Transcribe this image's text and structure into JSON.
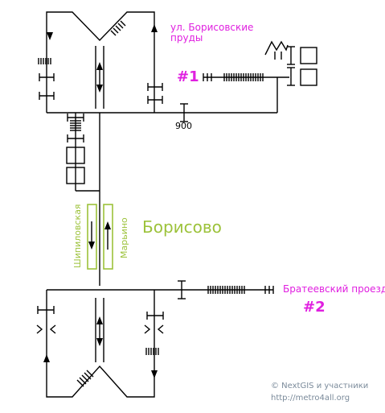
{
  "labels": {
    "street_top": "ул. Борисовские пруды",
    "shaft_1": "#1",
    "km_marker": "900",
    "station": "Борисово",
    "platform_left": "Шипиловская",
    "platform_right": "Марьино",
    "street_bottom": "Братеевский проезд",
    "shaft_2": "#2"
  },
  "credits": {
    "line1": "© NextGIS и участники",
    "line2": "http://metro4all.org"
  },
  "colors": {
    "line": "#000000",
    "accent_magenta": "#e020e0",
    "station_green": "#9cc23a",
    "credit_gray": "#7a8a9a"
  }
}
